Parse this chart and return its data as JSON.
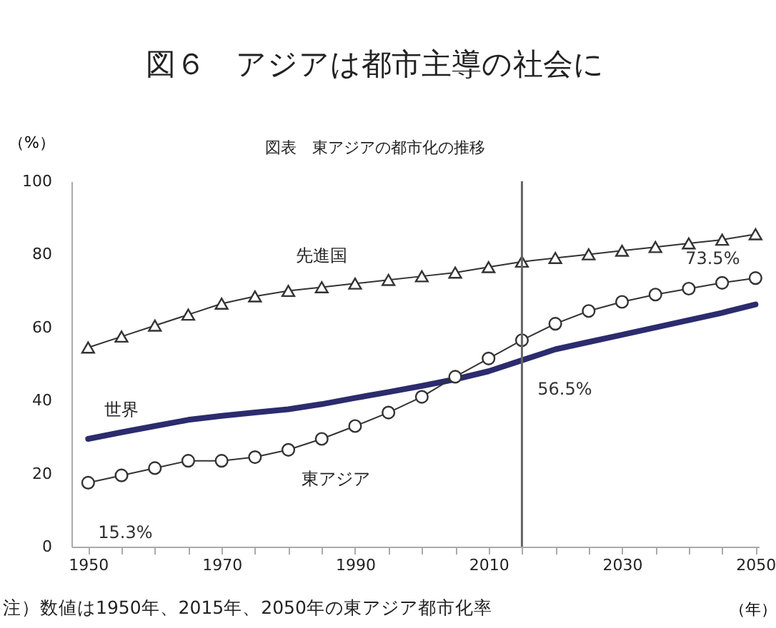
{
  "chart_data": {
    "type": "line",
    "title": "図６　アジアは都市主導の社会に",
    "subtitle": "図表　東アジアの都市化の推移",
    "xlabel": "（年）",
    "ylabel": "（%）",
    "x": [
      1950,
      1955,
      1960,
      1965,
      1970,
      1975,
      1980,
      1985,
      1990,
      1995,
      2000,
      2005,
      2010,
      2015,
      2020,
      2025,
      2030,
      2035,
      2040,
      2045,
      2050
    ],
    "series": [
      {
        "name": "先進国",
        "color": "#333333",
        "marker": "triangle",
        "values": [
          54.5,
          57.5,
          60.5,
          63.5,
          66.5,
          68.5,
          70,
          71,
          72,
          73,
          74,
          75,
          76.5,
          78,
          79,
          80,
          81,
          82,
          83,
          84,
          85.5
        ]
      },
      {
        "name": "世界",
        "color": "#2b2b6e",
        "marker": "none",
        "values": [
          29.5,
          31.3,
          33,
          34.7,
          35.8,
          36.7,
          37.6,
          39,
          40.7,
          42.3,
          44,
          45.8,
          48,
          51,
          54,
          56,
          58,
          60,
          62,
          64,
          66.3
        ]
      },
      {
        "name": "東アジア",
        "color": "#333333",
        "marker": "circle",
        "values": [
          17.5,
          19.5,
          21.5,
          23.5,
          23.5,
          24.5,
          26.5,
          29.5,
          33,
          36.7,
          41,
          46.5,
          51.5,
          56.5,
          61,
          64.5,
          67,
          69,
          70.6,
          72.2,
          73.5
        ]
      }
    ],
    "xlim": [
      1947.5,
      2050.5
    ],
    "xticks": [
      1950,
      {
        "value": 1955,
        "label": null
      },
      {
        "value": 1960,
        "label": null
      },
      {
        "value": 1965,
        "label": null
      },
      1970,
      {
        "value": 1975,
        "label": null
      },
      {
        "value": 1980,
        "label": null
      },
      {
        "value": 1985,
        "label": null
      },
      1990,
      {
        "value": 1995,
        "label": null
      },
      {
        "value": 2000,
        "label": null
      },
      {
        "value": 2005,
        "label": null
      },
      2010,
      {
        "value": 2015,
        "label": null
      },
      {
        "value": 2020,
        "label": null
      },
      {
        "value": 2025,
        "label": null
      },
      2030,
      {
        "value": 2035,
        "label": null
      },
      {
        "value": 2040,
        "label": null
      },
      {
        "value": 2045,
        "label": null
      },
      2050
    ],
    "ylim": [
      0,
      100
    ],
    "yticks": [
      0,
      20,
      40,
      60,
      80,
      100
    ],
    "ref_lines": [
      {
        "axis": "x",
        "value": 2015,
        "color": "#666666"
      }
    ],
    "annotations": [
      {
        "text": "15.3%",
        "x": 1950,
        "y": 17.5
      },
      {
        "text": "56.5%",
        "x": 2015,
        "y": 56.5
      },
      {
        "text": "73.5%",
        "x": 2050,
        "y": 73.5
      },
      "注）数値は1950年、2015年、2050年の東アジア都市化率"
    ],
    "grid": false
  }
}
